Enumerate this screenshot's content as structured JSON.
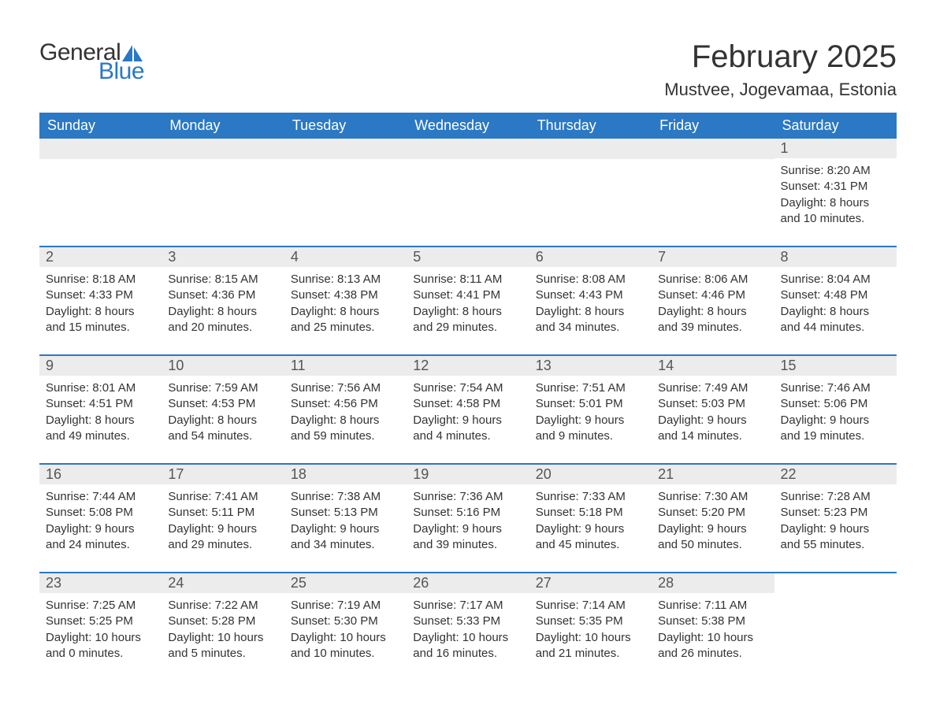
{
  "logo": {
    "general": "General",
    "blue": "Blue"
  },
  "header": {
    "title": "February 2025",
    "location": "Mustvee, Jogevamaa, Estonia"
  },
  "colors": {
    "brand_blue": "#2b78c4",
    "weekday_bg": "#2b78c4",
    "weekday_text": "#ffffff",
    "daynum_bg": "#ececec",
    "daynum_text": "#555555",
    "body_text": "#333333",
    "background": "#ffffff"
  },
  "typography": {
    "title_fontsize": 40,
    "location_fontsize": 22,
    "weekday_fontsize": 18,
    "daynum_fontsize": 18,
    "body_fontsize": 15,
    "font_family": "Arial"
  },
  "weekdays": [
    "Sunday",
    "Monday",
    "Tuesday",
    "Wednesday",
    "Thursday",
    "Friday",
    "Saturday"
  ],
  "labels": {
    "sunrise": "Sunrise:",
    "sunset": "Sunset:",
    "daylight": "Daylight:"
  },
  "weeks": [
    [
      null,
      null,
      null,
      null,
      null,
      null,
      {
        "day": "1",
        "sunrise": "8:20 AM",
        "sunset": "4:31 PM",
        "daylight": "8 hours and 10 minutes."
      }
    ],
    [
      {
        "day": "2",
        "sunrise": "8:18 AM",
        "sunset": "4:33 PM",
        "daylight": "8 hours and 15 minutes."
      },
      {
        "day": "3",
        "sunrise": "8:15 AM",
        "sunset": "4:36 PM",
        "daylight": "8 hours and 20 minutes."
      },
      {
        "day": "4",
        "sunrise": "8:13 AM",
        "sunset": "4:38 PM",
        "daylight": "8 hours and 25 minutes."
      },
      {
        "day": "5",
        "sunrise": "8:11 AM",
        "sunset": "4:41 PM",
        "daylight": "8 hours and 29 minutes."
      },
      {
        "day": "6",
        "sunrise": "8:08 AM",
        "sunset": "4:43 PM",
        "daylight": "8 hours and 34 minutes."
      },
      {
        "day": "7",
        "sunrise": "8:06 AM",
        "sunset": "4:46 PM",
        "daylight": "8 hours and 39 minutes."
      },
      {
        "day": "8",
        "sunrise": "8:04 AM",
        "sunset": "4:48 PM",
        "daylight": "8 hours and 44 minutes."
      }
    ],
    [
      {
        "day": "9",
        "sunrise": "8:01 AM",
        "sunset": "4:51 PM",
        "daylight": "8 hours and 49 minutes."
      },
      {
        "day": "10",
        "sunrise": "7:59 AM",
        "sunset": "4:53 PM",
        "daylight": "8 hours and 54 minutes."
      },
      {
        "day": "11",
        "sunrise": "7:56 AM",
        "sunset": "4:56 PM",
        "daylight": "8 hours and 59 minutes."
      },
      {
        "day": "12",
        "sunrise": "7:54 AM",
        "sunset": "4:58 PM",
        "daylight": "9 hours and 4 minutes."
      },
      {
        "day": "13",
        "sunrise": "7:51 AM",
        "sunset": "5:01 PM",
        "daylight": "9 hours and 9 minutes."
      },
      {
        "day": "14",
        "sunrise": "7:49 AM",
        "sunset": "5:03 PM",
        "daylight": "9 hours and 14 minutes."
      },
      {
        "day": "15",
        "sunrise": "7:46 AM",
        "sunset": "5:06 PM",
        "daylight": "9 hours and 19 minutes."
      }
    ],
    [
      {
        "day": "16",
        "sunrise": "7:44 AM",
        "sunset": "5:08 PM",
        "daylight": "9 hours and 24 minutes."
      },
      {
        "day": "17",
        "sunrise": "7:41 AM",
        "sunset": "5:11 PM",
        "daylight": "9 hours and 29 minutes."
      },
      {
        "day": "18",
        "sunrise": "7:38 AM",
        "sunset": "5:13 PM",
        "daylight": "9 hours and 34 minutes."
      },
      {
        "day": "19",
        "sunrise": "7:36 AM",
        "sunset": "5:16 PM",
        "daylight": "9 hours and 39 minutes."
      },
      {
        "day": "20",
        "sunrise": "7:33 AM",
        "sunset": "5:18 PM",
        "daylight": "9 hours and 45 minutes."
      },
      {
        "day": "21",
        "sunrise": "7:30 AM",
        "sunset": "5:20 PM",
        "daylight": "9 hours and 50 minutes."
      },
      {
        "day": "22",
        "sunrise": "7:28 AM",
        "sunset": "5:23 PM",
        "daylight": "9 hours and 55 minutes."
      }
    ],
    [
      {
        "day": "23",
        "sunrise": "7:25 AM",
        "sunset": "5:25 PM",
        "daylight": "10 hours and 0 minutes."
      },
      {
        "day": "24",
        "sunrise": "7:22 AM",
        "sunset": "5:28 PM",
        "daylight": "10 hours and 5 minutes."
      },
      {
        "day": "25",
        "sunrise": "7:19 AM",
        "sunset": "5:30 PM",
        "daylight": "10 hours and 10 minutes."
      },
      {
        "day": "26",
        "sunrise": "7:17 AM",
        "sunset": "5:33 PM",
        "daylight": "10 hours and 16 minutes."
      },
      {
        "day": "27",
        "sunrise": "7:14 AM",
        "sunset": "5:35 PM",
        "daylight": "10 hours and 21 minutes."
      },
      {
        "day": "28",
        "sunrise": "7:11 AM",
        "sunset": "5:38 PM",
        "daylight": "10 hours and 26 minutes."
      },
      null
    ]
  ]
}
